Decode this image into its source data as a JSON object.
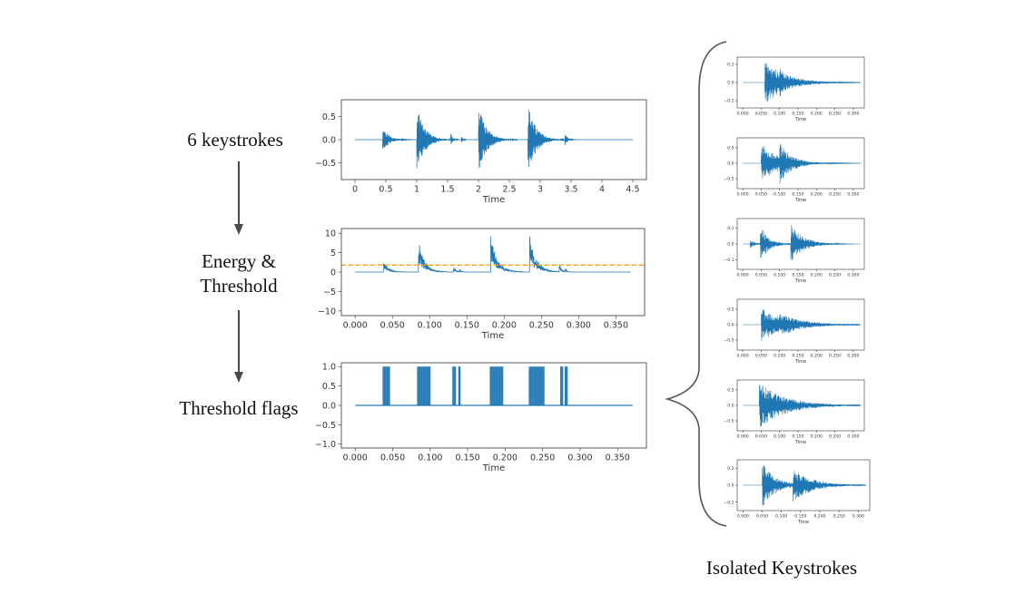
{
  "labels": {
    "keystrokes": "6 keystrokes",
    "energy_line1": "Energy &",
    "energy_line2": "Threshold",
    "flags": "Threshold flags",
    "isolated": "Isolated Keystrokes"
  },
  "colors": {
    "signal": "#1f77b4",
    "threshold": "#ff9f1c",
    "arrow": "#4a4a4a",
    "axis": "#333333"
  },
  "chart_data": [
    {
      "name": "waveform",
      "type": "line",
      "title": "",
      "xlabel": "Time",
      "ylabel": "",
      "xlim": [
        -0.22,
        4.72
      ],
      "ylim": [
        -0.86,
        0.86
      ],
      "xticks": [
        "0",
        "0.5",
        "1",
        "1.5",
        "2",
        "2.5",
        "3",
        "3.5",
        "4",
        "4.5"
      ],
      "xtick_values": [
        0,
        0.5,
        1,
        1.5,
        2,
        2.5,
        3,
        3.5,
        4,
        4.5
      ],
      "yticks": [
        "0.5",
        "0.0",
        "−0.5"
      ],
      "ytick_values": [
        0.5,
        0.0,
        -0.5
      ],
      "signal_range": [
        0,
        4.5
      ],
      "bursts": [
        {
          "t": 0.45,
          "amp": 0.27,
          "len": 0.35
        },
        {
          "t": 1.0,
          "amp": 0.75,
          "len": 0.45
        },
        {
          "t": 1.55,
          "amp": 0.15,
          "len": 0.12
        },
        {
          "t": 1.72,
          "amp": 0.1,
          "len": 0.08
        },
        {
          "t": 2.0,
          "amp": 0.78,
          "len": 0.45
        },
        {
          "t": 2.8,
          "amp": 0.8,
          "len": 0.45
        },
        {
          "t": 3.4,
          "amp": 0.15,
          "len": 0.15
        }
      ]
    },
    {
      "name": "energy",
      "type": "line",
      "title": "",
      "xlabel": "Time",
      "ylabel": "",
      "xlim": [
        -0.0185,
        0.3885
      ],
      "ylim": [
        -11.2,
        11.2
      ],
      "xticks": [
        "0.000",
        "0.050",
        "0.100",
        "0.150",
        "0.200",
        "0.250",
        "0.300",
        "0.350"
      ],
      "xtick_values": [
        0,
        0.05,
        0.1,
        0.15,
        0.2,
        0.25,
        0.3,
        0.35
      ],
      "yticks": [
        "10",
        "5",
        "0",
        "−5",
        "−10"
      ],
      "ytick_values": [
        10,
        5,
        0,
        -5,
        -10
      ],
      "threshold": 1.8,
      "signal_range": [
        0,
        0.37
      ],
      "peaks": [
        {
          "t": 0.038,
          "peak": 3.5,
          "len": 0.018
        },
        {
          "t": 0.085,
          "peak": 8.5,
          "len": 0.025
        },
        {
          "t": 0.132,
          "peak": 1.8,
          "len": 0.008
        },
        {
          "t": 0.14,
          "peak": 1.0,
          "len": 0.006
        },
        {
          "t": 0.182,
          "peak": 9.5,
          "len": 0.028
        },
        {
          "t": 0.234,
          "peak": 10.0,
          "len": 0.028
        },
        {
          "t": 0.274,
          "peak": 2.2,
          "len": 0.01
        },
        {
          "t": 0.282,
          "peak": 1.2,
          "len": 0.006
        }
      ]
    },
    {
      "name": "flags",
      "type": "line",
      "title": "",
      "xlabel": "Time",
      "ylabel": "",
      "xlim": [
        -0.0185,
        0.3885
      ],
      "ylim": [
        -1.1,
        1.1
      ],
      "xticks": [
        "0.000",
        "0.050",
        "0.100",
        "0.150",
        "0.200",
        "0.250",
        "0.300",
        "0.350"
      ],
      "xtick_values": [
        0,
        0.05,
        0.1,
        0.15,
        0.2,
        0.25,
        0.3,
        0.35
      ],
      "yticks": [
        "1.0",
        "0.5",
        "0.0",
        "−0.5",
        "−1.0"
      ],
      "ytick_values": [
        1.0,
        0.5,
        0.0,
        -0.5,
        -1.0
      ],
      "signal_range": [
        0,
        0.37
      ],
      "active_intervals": [
        [
          0.037,
          0.046
        ],
        [
          0.083,
          0.1
        ],
        [
          0.13,
          0.134
        ],
        [
          0.138,
          0.14
        ],
        [
          0.18,
          0.197
        ],
        [
          0.232,
          0.252
        ],
        [
          0.274,
          0.277
        ],
        [
          0.28,
          0.283
        ]
      ]
    },
    {
      "name": "isolated-1",
      "type": "line",
      "xlabel": "Time",
      "xlim": [
        -0.015,
        0.33
      ],
      "ylim": [
        -0.28,
        0.28
      ],
      "xticks": [
        "0.000",
        "0.050",
        "0.100",
        "0.150",
        "0.200",
        "0.250",
        "0.300"
      ],
      "xtick_values": [
        0,
        0.05,
        0.1,
        0.15,
        0.2,
        0.25,
        0.3
      ],
      "yticks": [
        "0.2",
        "0.0",
        "−0.2"
      ],
      "ytick_values": [
        0.2,
        0,
        -0.2
      ],
      "signal_range": [
        0,
        0.32
      ],
      "bursts": [
        {
          "t": 0.06,
          "amp": 0.25,
          "len": 0.2
        },
        {
          "t": 0.1,
          "amp": 0.17,
          "len": 0.1
        }
      ]
    },
    {
      "name": "isolated-2",
      "type": "line",
      "xlabel": "Time",
      "xlim": [
        -0.015,
        0.33
      ],
      "ylim": [
        -0.82,
        0.82
      ],
      "xticks": [
        "0.000",
        "0.050",
        "0.100",
        "0.150",
        "0.200",
        "0.250",
        "0.300"
      ],
      "xtick_values": [
        0,
        0.05,
        0.1,
        0.15,
        0.2,
        0.25,
        0.3
      ],
      "yticks": [
        "0.5",
        "0.0",
        "−0.5"
      ],
      "ytick_values": [
        0.5,
        0,
        -0.5
      ],
      "signal_range": [
        0,
        0.32
      ],
      "bursts": [
        {
          "t": 0.05,
          "amp": 0.6,
          "len": 0.2
        },
        {
          "t": 0.1,
          "amp": 0.7,
          "len": 0.12
        }
      ]
    },
    {
      "name": "isolated-3",
      "type": "line",
      "xlabel": "Time",
      "xlim": [
        -0.015,
        0.33
      ],
      "ylim": [
        -0.16,
        0.16
      ],
      "xticks": [
        "0.000",
        "0.050",
        "0.100",
        "0.150",
        "0.200",
        "0.250",
        "0.300"
      ],
      "xtick_values": [
        0,
        0.05,
        0.1,
        0.15,
        0.2,
        0.25,
        0.3
      ],
      "yticks": [
        "0.1",
        "0.0",
        "−0.1"
      ],
      "ytick_values": [
        0.1,
        0,
        -0.1
      ],
      "signal_range": [
        0,
        0.32
      ],
      "bursts": [
        {
          "t": 0.02,
          "amp": 0.03,
          "len": 0.05
        },
        {
          "t": 0.048,
          "amp": 0.12,
          "len": 0.08
        },
        {
          "t": 0.13,
          "amp": 0.13,
          "len": 0.12
        }
      ]
    },
    {
      "name": "isolated-4",
      "type": "line",
      "xlabel": "Time",
      "xlim": [
        -0.015,
        0.33
      ],
      "ylim": [
        -0.82,
        0.82
      ],
      "xticks": [
        "0.000",
        "0.050",
        "0.100",
        "0.150",
        "0.200",
        "0.250",
        "0.300"
      ],
      "xtick_values": [
        0,
        0.05,
        0.1,
        0.15,
        0.2,
        0.25,
        0.3
      ],
      "yticks": [
        "0.5",
        "0.0",
        "−0.5"
      ],
      "ytick_values": [
        0.5,
        0,
        -0.5
      ],
      "signal_range": [
        0,
        0.32
      ],
      "bursts": [
        {
          "t": 0.05,
          "amp": 0.55,
          "len": 0.22
        },
        {
          "t": 0.1,
          "amp": 0.4,
          "len": 0.22
        }
      ]
    },
    {
      "name": "isolated-5",
      "type": "line",
      "xlabel": "Time",
      "xlim": [
        -0.015,
        0.33
      ],
      "ylim": [
        -0.82,
        0.82
      ],
      "xticks": [
        "0.000",
        "0.050",
        "0.100",
        "0.150",
        "0.200",
        "0.250",
        "0.300"
      ],
      "xtick_values": [
        0,
        0.05,
        0.1,
        0.15,
        0.2,
        0.25,
        0.3
      ],
      "yticks": [
        "0.5",
        "0.0",
        "−0.5"
      ],
      "ytick_values": [
        0.5,
        0,
        -0.5
      ],
      "signal_range": [
        0,
        0.32
      ],
      "bursts": [
        {
          "t": 0.045,
          "amp": 0.75,
          "len": 0.25
        },
        {
          "t": 0.1,
          "amp": 0.25,
          "len": 0.15
        }
      ]
    },
    {
      "name": "isolated-6",
      "type": "line",
      "xlabel": "Time",
      "xlim": [
        -0.015,
        0.33
      ],
      "ylim": [
        -0.3,
        0.3
      ],
      "xticks": [
        "0.000",
        "0.050",
        "0.100",
        "0.150",
        "0.200",
        "0.250",
        "0.300"
      ],
      "xtick_values": [
        0,
        0.05,
        0.1,
        0.15,
        0.2,
        0.25,
        0.3
      ],
      "yticks": [
        "0.2",
        "0.0",
        "−0.2"
      ],
      "ytick_values": [
        0.2,
        0,
        -0.2
      ],
      "signal_range": [
        0,
        0.32
      ],
      "bursts": [
        {
          "t": 0.05,
          "amp": 0.27,
          "len": 0.12
        },
        {
          "t": 0.13,
          "amp": 0.2,
          "len": 0.18
        }
      ]
    }
  ]
}
